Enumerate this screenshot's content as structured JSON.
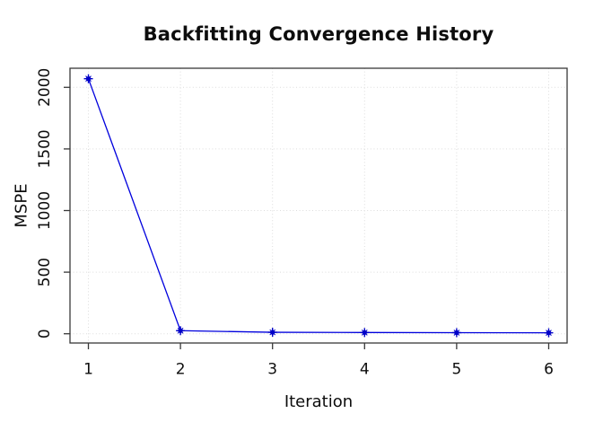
{
  "title": "Backfitting Convergence History",
  "chart_data": {
    "type": "line",
    "title": "Backfitting Convergence History",
    "xlabel": "Iteration",
    "ylabel": "MSPE",
    "x": [
      1,
      2,
      3,
      4,
      5,
      6
    ],
    "series": [
      {
        "name": "MSPE",
        "values": [
          2070,
          25,
          12,
          10,
          9,
          8
        ]
      }
    ],
    "x_tick_values": [
      1,
      2,
      3,
      4,
      5,
      6
    ],
    "x_tick_labels": [
      "1",
      "2",
      "3",
      "4",
      "5",
      "6"
    ],
    "y_tick_values": [
      0,
      500,
      1000,
      1500,
      2000
    ],
    "y_tick_labels": [
      "0",
      "500",
      "1000",
      "1500",
      "2000"
    ],
    "xlim": [
      0.8,
      6.2
    ],
    "ylim": [
      -75,
      2155
    ],
    "grid": "dotted-both-axes",
    "legend": "none",
    "marker_style": "star-circle",
    "colors": {
      "series_line": "#0000dd",
      "marker": "#0000c8",
      "grid": "#dcdcdc",
      "frame": "#383838",
      "text": "#0d0d0d"
    }
  }
}
